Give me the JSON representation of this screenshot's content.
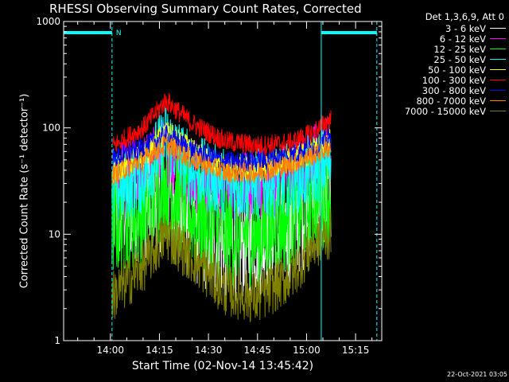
{
  "chart_data": {
    "type": "line",
    "title": "RHESSI Observing Summary Count Rates, Corrected",
    "xlabel": "Start Time (02-Nov-14 13:45:42)",
    "ylabel": "Corrected Count Rate (s⁻¹ detector⁻¹)",
    "y_scale": "log",
    "ylim": [
      1,
      1000
    ],
    "xlim": [
      "13:45:42",
      "15:23:00"
    ],
    "x_ticks": [
      "14:00",
      "14:15",
      "14:30",
      "14:45",
      "15:00",
      "15:15"
    ],
    "y_ticks": [
      "1",
      "10",
      "100",
      "1000"
    ],
    "legend_title": "Det 1,3,6,9, Att 0",
    "legend_placement": "right",
    "flag_label": "N",
    "night_intervals": [
      [
        "13:45:42",
        "14:00:30"
      ],
      [
        "15:04:30",
        "15:21:30"
      ]
    ],
    "series": [
      {
        "name": "3 - 6 keV",
        "color": "#ffffff",
        "x": [
          "14:00",
          "14:10",
          "14:17",
          "14:25",
          "14:35",
          "14:45",
          "14:55",
          "15:02",
          "15:07"
        ],
        "values": [
          18,
          20,
          25,
          12,
          8,
          9,
          12,
          20,
          22
        ]
      },
      {
        "name": "6 - 12 keV",
        "color": "#ff00ff",
        "x": [
          "14:00",
          "14:10",
          "14:17",
          "14:25",
          "14:35",
          "14:45",
          "14:55",
          "15:02",
          "15:07"
        ],
        "values": [
          30,
          40,
          60,
          35,
          25,
          28,
          35,
          50,
          60
        ]
      },
      {
        "name": "12 - 25 keV",
        "color": "#00ff00",
        "x": [
          "14:00",
          "14:10",
          "14:17",
          "14:25",
          "14:35",
          "14:45",
          "14:55",
          "15:02",
          "15:07"
        ],
        "values": [
          12,
          15,
          30,
          15,
          10,
          10,
          14,
          20,
          25
        ]
      },
      {
        "name": "25 - 50 keV",
        "color": "#00ffff",
        "x": [
          "14:00",
          "14:10",
          "14:17",
          "14:25",
          "14:35",
          "14:45",
          "14:55",
          "15:02",
          "15:07"
        ],
        "values": [
          25,
          35,
          80,
          40,
          30,
          30,
          33,
          40,
          50
        ]
      },
      {
        "name": "50 - 100 keV",
        "color": "#ffff00",
        "x": [
          "14:00",
          "14:10",
          "14:17",
          "14:25",
          "14:35",
          "14:45",
          "14:55",
          "15:02",
          "15:07"
        ],
        "values": [
          38,
          55,
          90,
          60,
          42,
          40,
          50,
          60,
          75
        ]
      },
      {
        "name": "100 - 300 keV",
        "color": "#ff0000",
        "x": [
          "14:00",
          "14:10",
          "14:17",
          "14:25",
          "14:35",
          "14:45",
          "14:55",
          "15:02",
          "15:07"
        ],
        "values": [
          65,
          100,
          180,
          110,
          75,
          68,
          72,
          90,
          120
        ]
      },
      {
        "name": "300 - 800 keV",
        "color": "#0000ff",
        "x": [
          "14:00",
          "14:10",
          "14:17",
          "14:25",
          "14:35",
          "14:45",
          "14:55",
          "15:02",
          "15:07"
        ],
        "values": [
          50,
          65,
          85,
          62,
          48,
          48,
          55,
          65,
          78
        ]
      },
      {
        "name": "800 - 7000 keV",
        "color": "#ff8000",
        "x": [
          "14:00",
          "14:10",
          "14:17",
          "14:25",
          "14:35",
          "14:45",
          "14:55",
          "15:02",
          "15:07"
        ],
        "values": [
          35,
          50,
          70,
          50,
          38,
          38,
          45,
          55,
          65
        ]
      },
      {
        "name": "7000 - 15000 keV",
        "color": "#808000",
        "x": [
          "14:00",
          "14:10",
          "14:17",
          "14:25",
          "14:35",
          "14:45",
          "14:55",
          "15:02",
          "15:07"
        ],
        "values": [
          2.5,
          5,
          10,
          6,
          3,
          2.5,
          4,
          8,
          10
        ]
      }
    ]
  },
  "timestamp": "22-Oct-2021 03:05"
}
